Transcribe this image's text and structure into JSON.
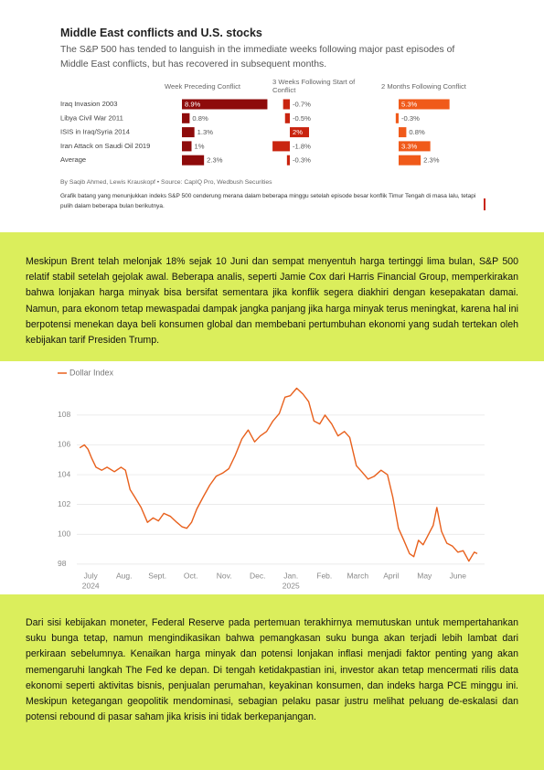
{
  "chart_data": [
    {
      "type": "bar",
      "title": "Middle East conflicts and U.S. stocks",
      "subtitle": "The S&P 500 has tended to languish in the immediate weeks following major past episodes of Middle East conflicts, but has recovered in subsequent months.",
      "categories": [
        "Iraq Invasion 2003",
        "Libya Civil War 2011",
        "ISIS in Iraq/Syria 2014",
        "Iran Attack on Saudi Oil 2019",
        "Average"
      ],
      "series": [
        {
          "name": "Week Preceding Conflict",
          "color": "#8e0b0b",
          "values": [
            8.9,
            0.8,
            1.3,
            1,
            2.3
          ],
          "value_labels": [
            "8.9%",
            "0.8%",
            "1.3%",
            "1%",
            "2.3%"
          ]
        },
        {
          "name": "3 Weeks Following Start of Conflict",
          "color": "#c9240f",
          "values": [
            -0.7,
            -0.5,
            2,
            -1.8,
            -0.3
          ],
          "value_labels": [
            "-0.7%",
            "-0.5%",
            "2%",
            "-1.8%",
            "-0.3%"
          ]
        },
        {
          "name": "2 Months Following Conflict",
          "color": "#f05a1a",
          "values": [
            5.3,
            -0.3,
            0.8,
            3.3,
            2.3
          ],
          "value_labels": [
            "5.3%",
            "-0.3%",
            "0.8%",
            "3.3%",
            "2.3%"
          ]
        }
      ],
      "source": "By Saqib Ahmed, Lewis Krauskopf • Source: CapIQ Pro, Wedbush Securities",
      "caption": "Grafik batang yang menunjukkan indeks S&P 500 cenderung merana dalam beberapa minggu setelah episode besar konflik Timur Tengah di masa lalu, tetapi pulih dalam beberapa bulan berikutnya."
    },
    {
      "type": "line",
      "series": [
        {
          "name": "Dollar Index",
          "color": "#e8601c",
          "values": [
            105.8,
            106.0,
            105.7,
            105.1,
            104.5,
            104.3,
            104.5,
            104.2,
            104.5,
            104.3,
            103.0,
            102.5,
            101.8,
            100.8,
            101.1,
            100.9,
            101.4,
            101.2,
            100.8,
            100.5,
            100.4,
            100.8,
            101.7,
            102.5,
            103.3,
            103.9,
            104.1,
            104.4,
            105.3,
            106.4,
            107.0,
            106.2,
            106.6,
            106.9,
            107.6,
            108.1,
            109.2,
            109.3,
            109.8,
            109.4,
            108.9,
            107.6,
            107.4,
            108.0,
            107.4,
            106.6,
            106.9,
            106.5,
            104.6,
            104.2,
            103.7,
            103.9,
            104.3,
            104.0,
            102.5,
            100.4,
            99.6,
            98.7,
            98.5,
            99.6,
            99.3,
            100.0,
            100.6,
            101.8,
            100.2,
            99.4,
            99.2,
            98.8,
            98.9,
            98.2,
            98.8,
            98.7
          ]
        }
      ],
      "x": [
        -0.33,
        -0.19,
        -0.08,
        0.03,
        0.16,
        0.33,
        0.49,
        0.71,
        0.91,
        1.04,
        1.18,
        1.32,
        1.51,
        1.7,
        1.87,
        2.03,
        2.19,
        2.39,
        2.58,
        2.74,
        2.88,
        3.02,
        3.18,
        3.37,
        3.57,
        3.76,
        3.95,
        4.14,
        4.33,
        4.53,
        4.72,
        4.91,
        5.08,
        5.27,
        5.46,
        5.65,
        5.82,
        5.98,
        6.17,
        6.36,
        6.53,
        6.69,
        6.86,
        7.02,
        7.22,
        7.41,
        7.6,
        7.76,
        7.96,
        8.12,
        8.31,
        8.5,
        8.7,
        8.89,
        9.05,
        9.22,
        9.38,
        9.55,
        9.68,
        9.82,
        9.96,
        10.12,
        10.26,
        10.37,
        10.51,
        10.67,
        10.84,
        11.0,
        11.16,
        11.33,
        11.49,
        11.58
      ],
      "xlim": [
        -0.8,
        11.8
      ],
      "xticks": [
        {
          "value": 0,
          "label": "July"
        },
        {
          "value": 1,
          "label": "Aug."
        },
        {
          "value": 2,
          "label": "Sept."
        },
        {
          "value": 3,
          "label": "Oct."
        },
        {
          "value": 4,
          "label": "Nov."
        },
        {
          "value": 5,
          "label": "Dec."
        },
        {
          "value": 6,
          "label": "Jan."
        },
        {
          "value": 7,
          "label": "Feb."
        },
        {
          "value": 8,
          "label": "March"
        },
        {
          "value": 9,
          "label": "April"
        },
        {
          "value": 10,
          "label": "May"
        },
        {
          "value": 11,
          "label": "June"
        }
      ],
      "xtick_years": [
        {
          "value": 0,
          "label": "2024"
        },
        {
          "value": 6,
          "label": "2025"
        }
      ],
      "ylim": [
        97.5,
        110.2
      ],
      "yticks": [
        98,
        100,
        102,
        104,
        106,
        108
      ],
      "grid": true
    }
  ],
  "paragraphs": [
    "Meskipun Brent telah melonjak 18% sejak 10 Juni dan sempat menyentuh harga tertinggi lima bulan, S&P 500 relatif stabil setelah gejolak awal. Beberapa analis, seperti Jamie Cox dari Harris Financial Group, memperkirakan bahwa lonjakan harga minyak bisa bersifat sementara jika konflik segera diakhiri dengan kesepakatan damai. Namun, para ekonom tetap mewaspadai dampak jangka panjang jika harga minyak terus meningkat, karena hal ini berpotensi menekan daya beli konsumen global dan membebani pertumbuhan ekonomi yang sudah tertekan oleh kebijakan tarif Presiden Trump.",
    "Dari sisi kebijakan moneter, Federal Reserve pada pertemuan terakhirnya memutuskan untuk mempertahankan suku bunga tetap, namun mengindikasikan bahwa pemangkasan suku bunga akan terjadi lebih lambat dari perkiraan sebelumnya. Kenaikan harga minyak dan potensi lonjakan inflasi menjadi faktor penting yang akan memengaruhi langkah The Fed ke depan. Di tengah ketidakpastian ini, investor akan tetap mencermati rilis data ekonomi seperti aktivitas bisnis, penjualan perumahan, keyakinan konsumen, dan indeks harga PCE minggu ini. Meskipun ketegangan geopolitik mendominasi, sebagian pelaku pasar justru melihat peluang de-eskalasi dan potensi rebound di pasar saham jika krisis ini tidak berkepanjangan."
  ]
}
